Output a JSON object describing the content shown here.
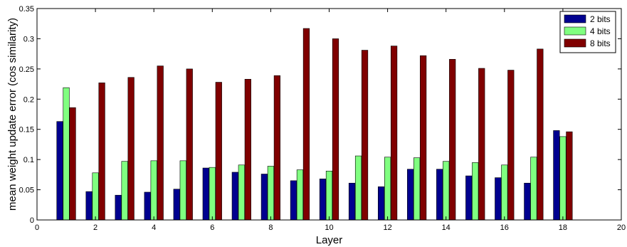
{
  "chart_data": {
    "type": "bar",
    "xlabel": "Layer",
    "ylabel": "mean weight update error (cos similarity)",
    "xlim": [
      0,
      20
    ],
    "ylim": [
      0,
      0.35
    ],
    "xticks": [
      0,
      2,
      4,
      6,
      8,
      10,
      12,
      14,
      16,
      18,
      20
    ],
    "yticks": [
      0,
      0.05,
      0.1,
      0.15,
      0.2,
      0.25,
      0.3,
      0.35
    ],
    "x_tick_labels": [
      "0",
      "2",
      "4",
      "6",
      "8",
      "10",
      "12",
      "14",
      "16",
      "18",
      "20"
    ],
    "y_tick_labels": [
      "0",
      "0.05",
      "0.1",
      "0.15",
      "0.2",
      "0.25",
      "0.3",
      "0.35"
    ],
    "grid": false,
    "legend_position": "top-right",
    "categories": [
      1,
      2,
      3,
      4,
      5,
      6,
      7,
      8,
      9,
      10,
      11,
      12,
      13,
      14,
      15,
      16,
      17,
      18
    ],
    "series": [
      {
        "name": "2 bits",
        "color": "#00008f",
        "values": [
          0.163,
          0.047,
          0.041,
          0.046,
          0.051,
          0.086,
          0.079,
          0.076,
          0.065,
          0.068,
          0.061,
          0.055,
          0.084,
          0.084,
          0.073,
          0.07,
          0.061,
          0.148
        ]
      },
      {
        "name": "4 bits",
        "color": "#80ff80",
        "values": [
          0.219,
          0.078,
          0.097,
          0.098,
          0.098,
          0.087,
          0.091,
          0.089,
          0.083,
          0.081,
          0.106,
          0.104,
          0.103,
          0.097,
          0.095,
          0.091,
          0.104,
          0.138
        ]
      },
      {
        "name": "8 bits",
        "color": "#800000",
        "values": [
          0.186,
          0.227,
          0.236,
          0.255,
          0.25,
          0.228,
          0.233,
          0.239,
          0.317,
          0.3,
          0.281,
          0.288,
          0.272,
          0.266,
          0.251,
          0.248,
          0.283,
          0.146
        ]
      }
    ]
  }
}
